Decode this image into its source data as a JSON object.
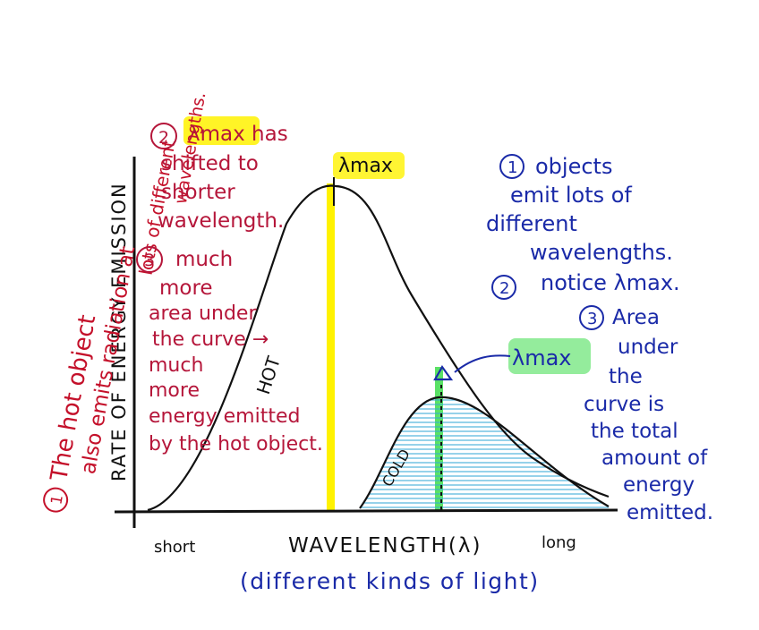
{
  "axes": {
    "y_label": "RATE OF ENERGY EMISSION",
    "x_label": "WAVELENGTH(λ)",
    "x_sublabel": "(different kinds of light)",
    "short_label": "short",
    "long_label": "long"
  },
  "curves": {
    "hot_label": "HOT",
    "cold_label": "COLD",
    "hot_lambda_max": "λmax",
    "cold_lambda_max": "λmax"
  },
  "left_note": {
    "number": "1",
    "lines": [
      "The hot object",
      "also emits radiation at",
      "lots of different",
      "wavelengths."
    ]
  },
  "red_notes": {
    "note2_number": "2",
    "note2_lines": [
      "λmax has",
      "shifted to",
      "shorter",
      "wavelength."
    ],
    "note3_number": "3",
    "note3_lines": [
      "much",
      "more",
      "area under",
      "the curve →",
      "much",
      "more",
      "energy emitted",
      "by the hot object."
    ]
  },
  "blue_notes": {
    "note1_number": "1",
    "note1_lines": [
      "objects",
      "emit lots of",
      "different",
      "wavelengths."
    ],
    "note2_number": "2",
    "note2_text": "notice λmax.",
    "note3_number": "3",
    "note3_lines": [
      "Area",
      "under",
      "the",
      "curve is",
      "the total",
      "amount of",
      "energy",
      "emitted."
    ]
  },
  "colors": {
    "hot_highlight": "#fff200",
    "cold_highlight": "#3ddc4a",
    "shading": "#35a9d6",
    "red_ink": "#c4102a",
    "blue_ink": "#1a2aa8"
  }
}
